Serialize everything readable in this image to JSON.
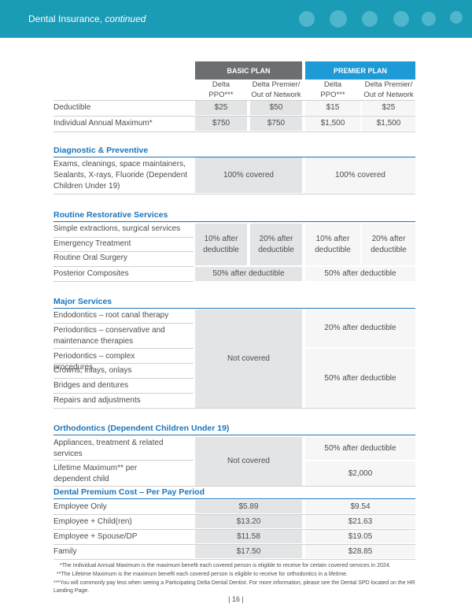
{
  "header": {
    "title": "Dental Insurance",
    "subtitle": "continued"
  },
  "plans": [
    "BASIC PLAN",
    "PREMIER PLAN"
  ],
  "columns": [
    [
      "Delta",
      "PPO***"
    ],
    [
      "Delta Premier/",
      "Out of Network"
    ],
    [
      "Delta",
      "PPO***"
    ],
    [
      "Delta Premier/",
      "Out of Network"
    ]
  ],
  "summary": [
    {
      "label": "Deductible",
      "values": [
        "$25",
        "$50",
        "$15",
        "$25"
      ]
    },
    {
      "label": "Individual Annual Maximum*",
      "values": [
        "$750",
        "$750",
        "$1,500",
        "$1,500"
      ]
    }
  ],
  "sections": [
    {
      "title": "Diagnostic & Preventive",
      "rows": [
        "Exams, cleanings, space maintainers, Sealants, X-rays, Fluoride (Dependent Children Under 19)"
      ],
      "coverage": [
        "100% covered",
        "100% covered"
      ]
    },
    {
      "title": "Routine Restorative Services",
      "rows": [
        "Simple extractions, surgical services",
        "Emergency Treatment",
        "Routine Oral Surgery",
        "Posterior Composites"
      ],
      "coverage": [
        "10% after deductible",
        "20% after deductible",
        "10% after deductible",
        "20% after deductible",
        "50% after deductible",
        "50% after deductible"
      ]
    },
    {
      "title": "Major Services",
      "rows": [
        "Endodontics – root canal therapy",
        "Periodontics – conservative and maintenance therapies",
        "Periodontics – complex procedures",
        "Crowns, inlays, onlays",
        "Bridges and dentures",
        "Repairs and adjustments"
      ],
      "coverage": [
        "Not covered",
        "20% after deductible",
        "50% after deductible"
      ]
    },
    {
      "title": "Orthodontics (Dependent Children Under 19)",
      "rows": [
        "Appliances, treatment & related services",
        "Lifetime Maximum** per dependent child"
      ],
      "coverage": [
        "Not covered",
        "50% after deductible",
        "$2,000"
      ]
    }
  ],
  "premium": {
    "title": "Dental Premium Cost – Per Pay Period",
    "rows": [
      {
        "label": "Employee Only",
        "values": [
          "$5.89",
          "$9.54"
        ]
      },
      {
        "label": "Employee + Child(ren)",
        "values": [
          "$13.20",
          "$21.63"
        ]
      },
      {
        "label": "Employee + Spouse/DP",
        "values": [
          "$11.58",
          "$19.05"
        ]
      },
      {
        "label": "Family",
        "values": [
          "$17.50",
          "$28.85"
        ]
      }
    ]
  },
  "footnotes": [
    "*The Individual Annual Maximum is the maximum benefit each covered person is eligible to receive for certain covered services in 2024.",
    "**The Lifetime Maximum is the maximum benefit each covered person is eligible to receive for orthodontics in a lifetime.",
    "***You will commonly pay less when seeing a Participating Delta Dental Dentist. For more information, please see the Dental SPD located on the HR Landing Page."
  ],
  "page_number": "| 16 |"
}
